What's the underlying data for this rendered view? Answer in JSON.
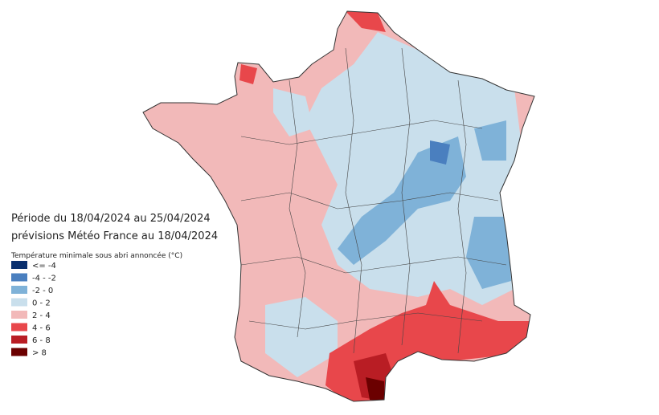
{
  "header": {
    "line1": "Période du 18/04/2024 au 25/04/2024",
    "line2": "prévisions Météo France au 18/04/2024"
  },
  "legend": {
    "title": "Température minimale sous abri annoncée (°C)",
    "items": [
      {
        "label": "<= -4",
        "color": "#0a2f6e"
      },
      {
        "label": "-4 - -2",
        "color": "#4a7fbf"
      },
      {
        "label": "-2 - 0",
        "color": "#7fb2d8"
      },
      {
        "label": "0 - 2",
        "color": "#c9dfec"
      },
      {
        "label": "2 - 4",
        "color": "#f2b9b9"
      },
      {
        "label": "4 - 6",
        "color": "#e8474b"
      },
      {
        "label": "6 - 8",
        "color": "#b91d24"
      },
      {
        "label": "> 8",
        "color": "#6b0000"
      }
    ]
  }
}
